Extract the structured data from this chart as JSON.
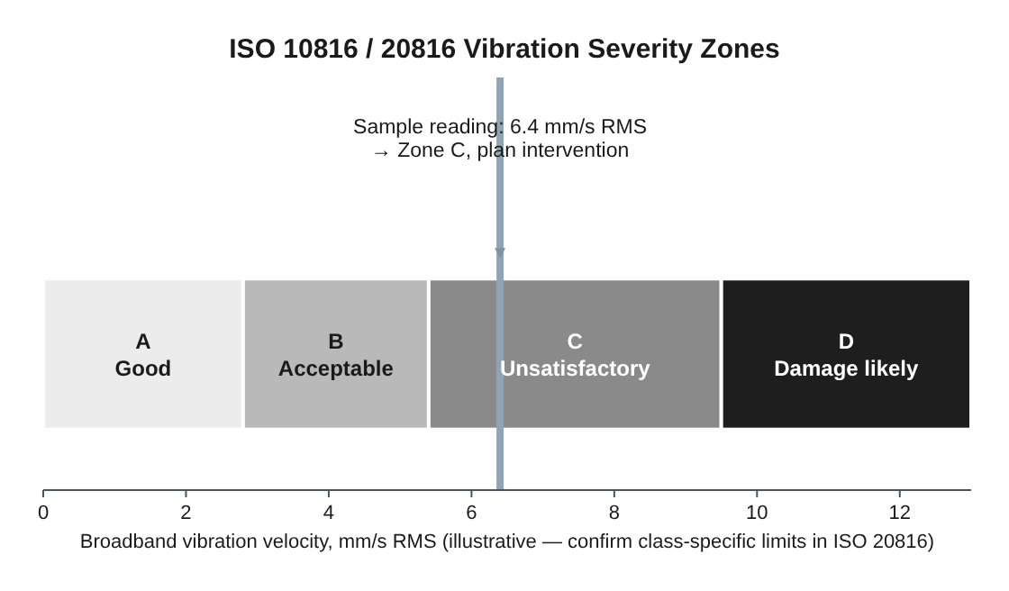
{
  "chart_data": {
    "type": "bar",
    "orientation": "horizontal",
    "stacked": true,
    "title": "ISO 10816 / 20816 Vibration Severity Zones",
    "xlabel": "Broadband vibration velocity, mm/s RMS (illustrative — confirm class-specific limits in ISO 20816)",
    "categories": [
      null
    ],
    "series": [
      {
        "name": "A\nGood",
        "color": "#ececec",
        "values": [
          2.8
        ]
      },
      {
        "name": "B\nAcceptable",
        "color": "#b9b9b9",
        "values": [
          2.6
        ]
      },
      {
        "name": "C\nUnsatisfactory",
        "color": "#8a8a8a",
        "values": [
          4.1
        ]
      },
      {
        "name": "D\nDamage likely",
        "color": "#1e1e1e",
        "values": [
          3.5
        ]
      }
    ],
    "xlim": [
      0,
      13
    ],
    "xticks": [
      0,
      2,
      4,
      6,
      8,
      10,
      12
    ],
    "grid": false,
    "ref_lines": [
      {
        "axis": "x",
        "value": 6.4,
        "label": "Sample reading: 6.4 mm/s RMS\n→ Zone C, plan intervention",
        "color": "#8fa5b3"
      }
    ]
  }
}
